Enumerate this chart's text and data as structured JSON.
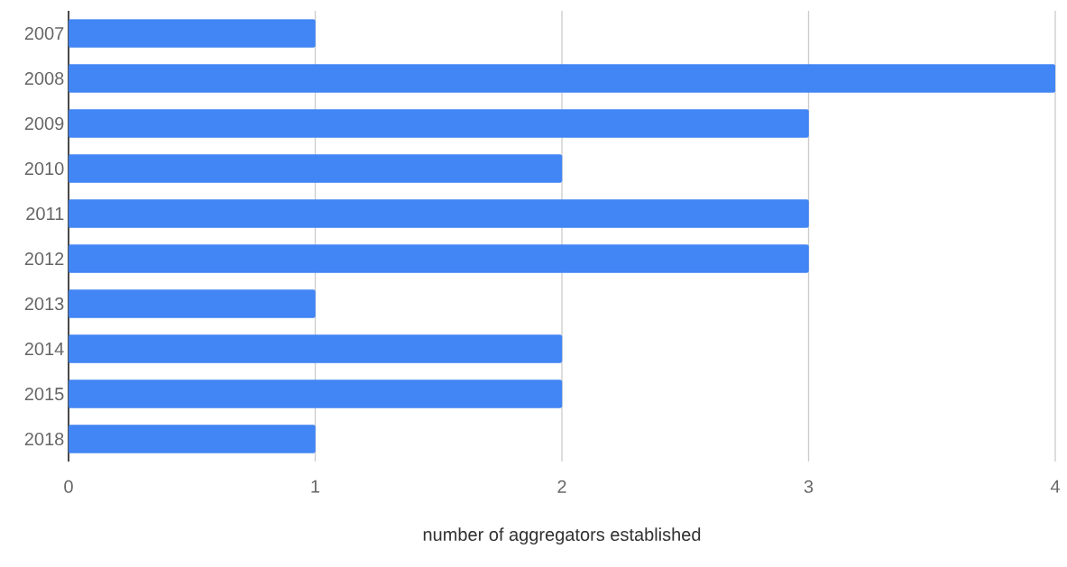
{
  "chart_data": {
    "type": "bar",
    "orientation": "horizontal",
    "categories": [
      "2007",
      "2008",
      "2009",
      "2010",
      "2011",
      "2012",
      "2013",
      "2014",
      "2015",
      "2018"
    ],
    "values": [
      1,
      4,
      3,
      2,
      3,
      3,
      1,
      2,
      2,
      1
    ],
    "color": "#4285f4",
    "xlabel": "number of aggregators established",
    "xlim": [
      0,
      4
    ],
    "xticks": [
      0,
      1,
      2,
      3,
      4
    ],
    "grid": "x"
  }
}
